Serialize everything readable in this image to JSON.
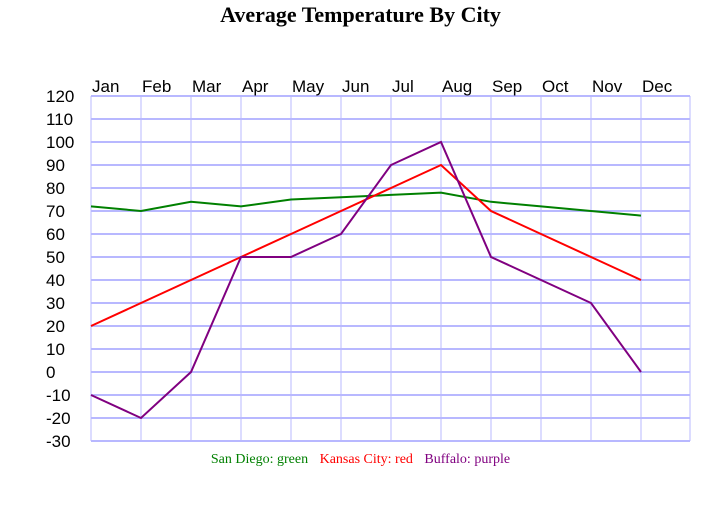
{
  "chart_data": {
    "type": "line",
    "title": "Average Temperature By City",
    "categories": [
      "Jan",
      "Feb",
      "Mar",
      "Apr",
      "May",
      "Jun",
      "Jul",
      "Aug",
      "Sep",
      "Oct",
      "Nov",
      "Dec"
    ],
    "yticks": [
      "120",
      "110",
      "100",
      "90",
      "80",
      "70",
      "60",
      "50",
      "40",
      "30",
      "20",
      "10",
      "0",
      "-10",
      "-20",
      "-30"
    ],
    "ylim": [
      -30,
      120
    ],
    "grid": true,
    "legend_placement": "bottom",
    "series": [
      {
        "name": "San Diego",
        "legend": "San Diego: green",
        "color": "#008000",
        "values": [
          72,
          70,
          74,
          72,
          75,
          76,
          77,
          78,
          74,
          72,
          70,
          68
        ]
      },
      {
        "name": "Kansas City",
        "legend": "Kansas City: red",
        "color": "#ff0000",
        "values": [
          20,
          30,
          40,
          50,
          60,
          70,
          80,
          90,
          70,
          60,
          50,
          40
        ]
      },
      {
        "name": "Buffalo",
        "legend": "Buffalo: purple",
        "color": "#800080",
        "values": [
          -10,
          -20,
          0,
          50,
          50,
          60,
          90,
          100,
          50,
          40,
          30,
          0
        ]
      }
    ]
  }
}
